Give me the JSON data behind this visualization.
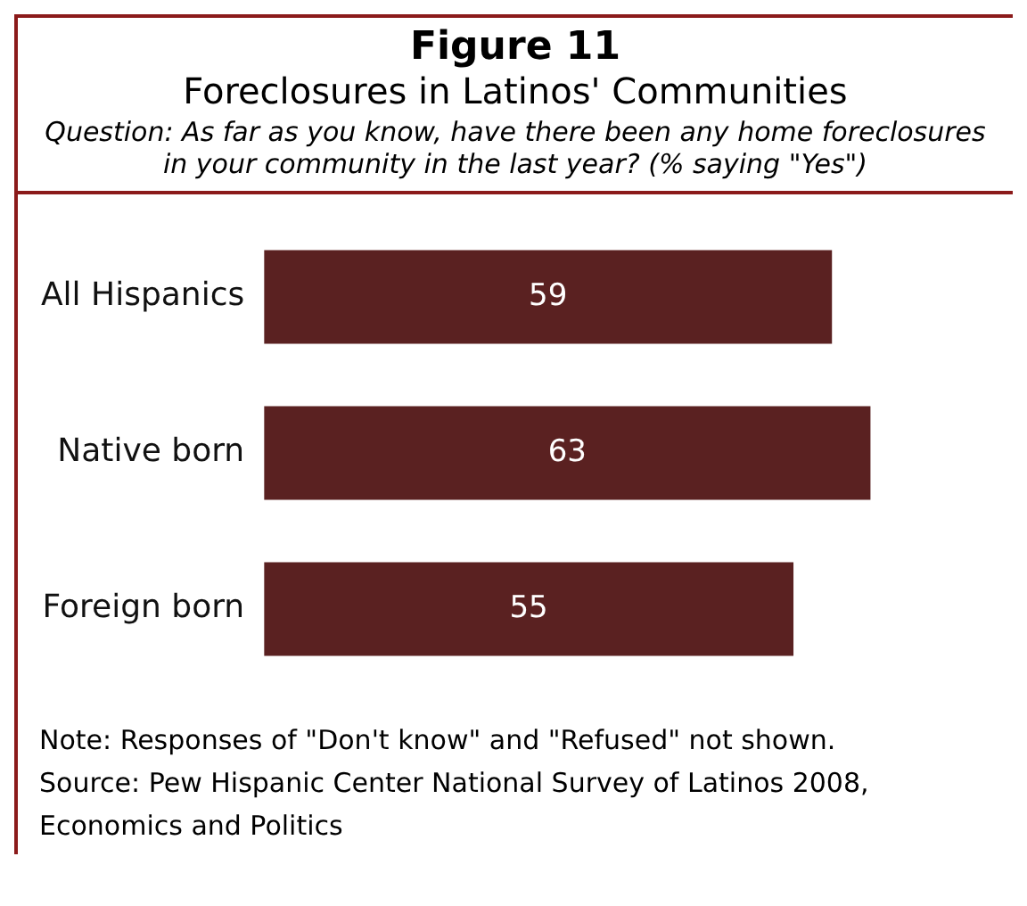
{
  "chart_data": {
    "type": "bar",
    "orientation": "horizontal",
    "title": "Figure 11",
    "subtitle": "Foreclosures in Latinos' Communities",
    "categories": [
      "All Hispanics",
      "Native born",
      "Foreign born"
    ],
    "values": [
      59,
      63,
      55
    ],
    "color": "#5a2121",
    "data_labels": true,
    "legend": false,
    "tick_labels": "y",
    "annotations": [
      "Question: As far as you know, have there been any home foreclosures in your community in the last year? (% saying \"Yes\")",
      "Note: Responses of \"Don't know\" and \"Refused\" not shown.",
      "Source: Pew Hispanic Center National Survey of Latinos 2008, Economics and Politics"
    ]
  }
}
